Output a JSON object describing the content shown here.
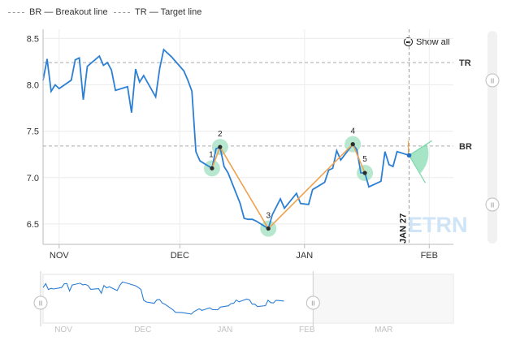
{
  "legend": {
    "items": [
      {
        "key": "BR",
        "label": "BR — Breakout line"
      },
      {
        "key": "TR",
        "label": "TR — Target line"
      }
    ]
  },
  "controls": {
    "show_all": "Show all",
    "slider_grip": "II"
  },
  "watermark": "ETRN",
  "colors": {
    "price_line": "#2b7fd4",
    "pattern_line": "#f0a14e",
    "pattern_halo": "#b7e8cf",
    "marker_dot": "#2b2b2b",
    "reference_line": "#aaaaaa",
    "arrow": "#7fd9ad",
    "watermark": "#cfe4f7",
    "navigator_line": "#2b7fd4"
  },
  "chart_data": {
    "type": "line",
    "title": "",
    "xlabel": "",
    "ylabel": "",
    "x_ticks": [
      "NOV",
      "DEC",
      "JAN",
      "FEB"
    ],
    "y_ticks": [
      6.5,
      7.0,
      7.5,
      8.0,
      8.5
    ],
    "ylim": [
      6.28,
      8.6
    ],
    "x_range": [
      "2019-10-28",
      "2020-02-07"
    ],
    "grid": true,
    "series": [
      {
        "values": [
          {
            "x": "2019-10-28",
            "y": 8.05
          },
          {
            "x": "2019-10-29",
            "y": 8.28
          },
          {
            "x": "2019-10-30",
            "y": 7.93
          },
          {
            "x": "2019-10-31",
            "y": 8.0
          },
          {
            "x": "2019-11-01",
            "y": 7.96
          },
          {
            "x": "2019-11-04",
            "y": 8.05
          },
          {
            "x": "2019-11-05",
            "y": 8.27
          },
          {
            "x": "2019-11-06",
            "y": 8.29
          },
          {
            "x": "2019-11-07",
            "y": 7.84
          },
          {
            "x": "2019-11-08",
            "y": 8.2
          },
          {
            "x": "2019-11-11",
            "y": 8.31
          },
          {
            "x": "2019-11-12",
            "y": 8.21
          },
          {
            "x": "2019-11-13",
            "y": 8.24
          },
          {
            "x": "2019-11-14",
            "y": 8.16
          },
          {
            "x": "2019-11-15",
            "y": 7.94
          },
          {
            "x": "2019-11-18",
            "y": 7.98
          },
          {
            "x": "2019-11-19",
            "y": 7.7
          },
          {
            "x": "2019-11-20",
            "y": 8.17
          },
          {
            "x": "2019-11-21",
            "y": 8.03
          },
          {
            "x": "2019-11-22",
            "y": 8.1
          },
          {
            "x": "2019-11-25",
            "y": 7.87
          },
          {
            "x": "2019-11-26",
            "y": 8.18
          },
          {
            "x": "2019-11-27",
            "y": 8.38
          },
          {
            "x": "2019-11-29",
            "y": 8.3
          },
          {
            "x": "2019-12-02",
            "y": 8.15
          },
          {
            "x": "2019-12-03",
            "y": 8.05
          },
          {
            "x": "2019-12-04",
            "y": 7.93
          },
          {
            "x": "2019-12-05",
            "y": 7.28
          },
          {
            "x": "2019-12-06",
            "y": 7.18
          },
          {
            "x": "2019-12-09",
            "y": 7.1
          },
          {
            "x": "2019-12-10",
            "y": 7.31
          },
          {
            "x": "2019-12-11",
            "y": 7.33
          },
          {
            "x": "2019-12-12",
            "y": 7.12
          },
          {
            "x": "2019-12-13",
            "y": 7.05
          },
          {
            "x": "2019-12-16",
            "y": 6.72
          },
          {
            "x": "2019-12-17",
            "y": 6.56
          },
          {
            "x": "2019-12-18",
            "y": 6.55
          },
          {
            "x": "2019-12-19",
            "y": 6.55
          },
          {
            "x": "2019-12-20",
            "y": 6.53
          },
          {
            "x": "2019-12-23",
            "y": 6.45
          },
          {
            "x": "2019-12-24",
            "y": 6.6
          },
          {
            "x": "2019-12-26",
            "y": 6.77
          },
          {
            "x": "2019-12-27",
            "y": 6.67
          },
          {
            "x": "2019-12-30",
            "y": 6.83
          },
          {
            "x": "2019-12-31",
            "y": 6.72
          },
          {
            "x": "2020-01-02",
            "y": 6.71
          },
          {
            "x": "2020-01-03",
            "y": 6.87
          },
          {
            "x": "2020-01-06",
            "y": 6.95
          },
          {
            "x": "2020-01-07",
            "y": 7.08
          },
          {
            "x": "2020-01-08",
            "y": 7.1
          },
          {
            "x": "2020-01-09",
            "y": 7.29
          },
          {
            "x": "2020-01-10",
            "y": 7.19
          },
          {
            "x": "2020-01-13",
            "y": 7.36
          },
          {
            "x": "2020-01-14",
            "y": 7.3
          },
          {
            "x": "2020-01-15",
            "y": 7.05
          },
          {
            "x": "2020-01-16",
            "y": 7.05
          },
          {
            "x": "2020-01-17",
            "y": 6.9
          },
          {
            "x": "2020-01-20",
            "y": 6.96
          },
          {
            "x": "2020-01-21",
            "y": 7.28
          },
          {
            "x": "2020-01-22",
            "y": 7.14
          },
          {
            "x": "2020-01-23",
            "y": 7.12
          },
          {
            "x": "2020-01-24",
            "y": 7.28
          },
          {
            "x": "2020-01-27",
            "y": 7.24
          }
        ]
      }
    ],
    "reference_lines": [
      {
        "label": "TR",
        "y": 8.24
      },
      {
        "label": "BR",
        "y": 7.34
      }
    ],
    "pattern_points": [
      {
        "label": "1",
        "x": "2019-12-09",
        "y": 7.1
      },
      {
        "label": "2",
        "x": "2019-12-11",
        "y": 7.33
      },
      {
        "label": "3",
        "x": "2019-12-23",
        "y": 6.45
      },
      {
        "label": "4",
        "x": "2020-01-13",
        "y": 7.36
      },
      {
        "label": "5",
        "x": "2020-01-16",
        "y": 7.05
      }
    ],
    "current_date": {
      "label": "JAN 27",
      "x": "2020-01-27"
    }
  },
  "navigator": {
    "x_ticks": [
      "NOV",
      "DEC",
      "JAN",
      "FEB",
      "MAR"
    ]
  }
}
